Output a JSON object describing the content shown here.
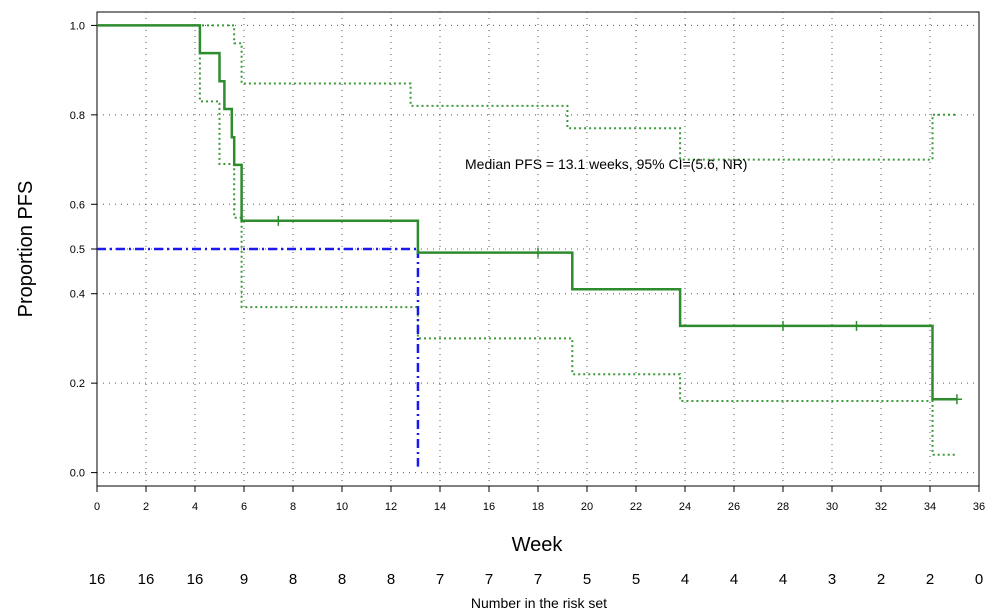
{
  "chart_data": {
    "type": "line",
    "xlabel": "Week",
    "ylabel": "Proportion PFS",
    "xlim": [
      0,
      36
    ],
    "ylim": [
      -0.03,
      1.03
    ],
    "x_ticks": [
      0,
      2,
      4,
      6,
      8,
      10,
      12,
      14,
      16,
      18,
      20,
      22,
      24,
      26,
      28,
      30,
      32,
      34,
      36
    ],
    "y_ticks": [
      0.0,
      0.2,
      0.4,
      0.5,
      0.6,
      0.8,
      1.0
    ],
    "x_tick_labels": [
      "0",
      "2",
      "4",
      "6",
      "8",
      "10",
      "12",
      "14",
      "16",
      "18",
      "20",
      "22",
      "24",
      "26",
      "28",
      "30",
      "32",
      "34",
      "36"
    ],
    "y_tick_labels": [
      "0.0",
      "0.2",
      "0.4",
      "0.5",
      "0.6",
      "0.8",
      "1.0"
    ],
    "grid": true,
    "annotation": "Median PFS = 13.1 weeks, 95% CI=(5.6, NR)",
    "colors": {
      "survival": "#2e8b2e",
      "ci": "#3a9a3a",
      "median": "#1a1aee",
      "grid": "#555555"
    },
    "series": [
      {
        "name": "",
        "style": "solid",
        "steps": [
          [
            0,
            1.0
          ],
          [
            4.2,
            1.0
          ],
          [
            4.2,
            0.938
          ],
          [
            5.0,
            0.938
          ],
          [
            5.0,
            0.875
          ],
          [
            5.2,
            0.875
          ],
          [
            5.2,
            0.813
          ],
          [
            5.5,
            0.813
          ],
          [
            5.5,
            0.75
          ],
          [
            5.6,
            0.75
          ],
          [
            5.6,
            0.688
          ],
          [
            5.9,
            0.688
          ],
          [
            5.9,
            0.563
          ],
          [
            13.1,
            0.563
          ],
          [
            13.1,
            0.492
          ],
          [
            19.4,
            0.492
          ],
          [
            19.4,
            0.41
          ],
          [
            23.8,
            0.41
          ],
          [
            23.8,
            0.328
          ],
          [
            34.1,
            0.328
          ],
          [
            34.1,
            0.164
          ],
          [
            35.1,
            0.164
          ]
        ],
        "censors": [
          [
            7.4,
            0.563
          ],
          [
            18.0,
            0.492
          ],
          [
            28.0,
            0.328
          ],
          [
            31.0,
            0.328
          ],
          [
            35.1,
            0.164
          ]
        ]
      },
      {
        "name": "",
        "style": "dotted",
        "steps": [
          [
            0,
            1.0
          ],
          [
            5.6,
            1.0
          ],
          [
            5.6,
            0.96
          ],
          [
            5.9,
            0.96
          ],
          [
            5.9,
            0.87
          ],
          [
            12.8,
            0.87
          ],
          [
            12.8,
            0.82
          ],
          [
            19.2,
            0.82
          ],
          [
            19.2,
            0.77
          ],
          [
            23.8,
            0.77
          ],
          [
            23.8,
            0.7
          ],
          [
            34.1,
            0.7
          ],
          [
            34.1,
            0.8
          ],
          [
            35.1,
            0.8
          ]
        ]
      },
      {
        "name": "",
        "style": "dotted",
        "steps": [
          [
            0,
            1.0
          ],
          [
            4.2,
            1.0
          ],
          [
            4.2,
            0.83
          ],
          [
            5.0,
            0.83
          ],
          [
            5.0,
            0.69
          ],
          [
            5.6,
            0.69
          ],
          [
            5.6,
            0.57
          ],
          [
            5.9,
            0.57
          ],
          [
            5.9,
            0.37
          ],
          [
            13.1,
            0.37
          ],
          [
            13.1,
            0.3
          ],
          [
            19.4,
            0.3
          ],
          [
            19.4,
            0.22
          ],
          [
            23.8,
            0.22
          ],
          [
            23.8,
            0.16
          ],
          [
            34.1,
            0.16
          ],
          [
            34.1,
            0.04
          ],
          [
            35.1,
            0.04
          ]
        ]
      }
    ],
    "median": {
      "x": 13.1,
      "y": 0.5
    },
    "risk_set": {
      "title": "Number in the risk set",
      "x": [
        0,
        2,
        4,
        6,
        8,
        10,
        12,
        14,
        16,
        18,
        20,
        22,
        24,
        26,
        28,
        30,
        32,
        34,
        36
      ],
      "values": [
        "16",
        "16",
        "16",
        "9",
        "8",
        "8",
        "8",
        "7",
        "7",
        "7",
        "5",
        "5",
        "4",
        "4",
        "4",
        "3",
        "2",
        "2",
        "0"
      ]
    }
  }
}
